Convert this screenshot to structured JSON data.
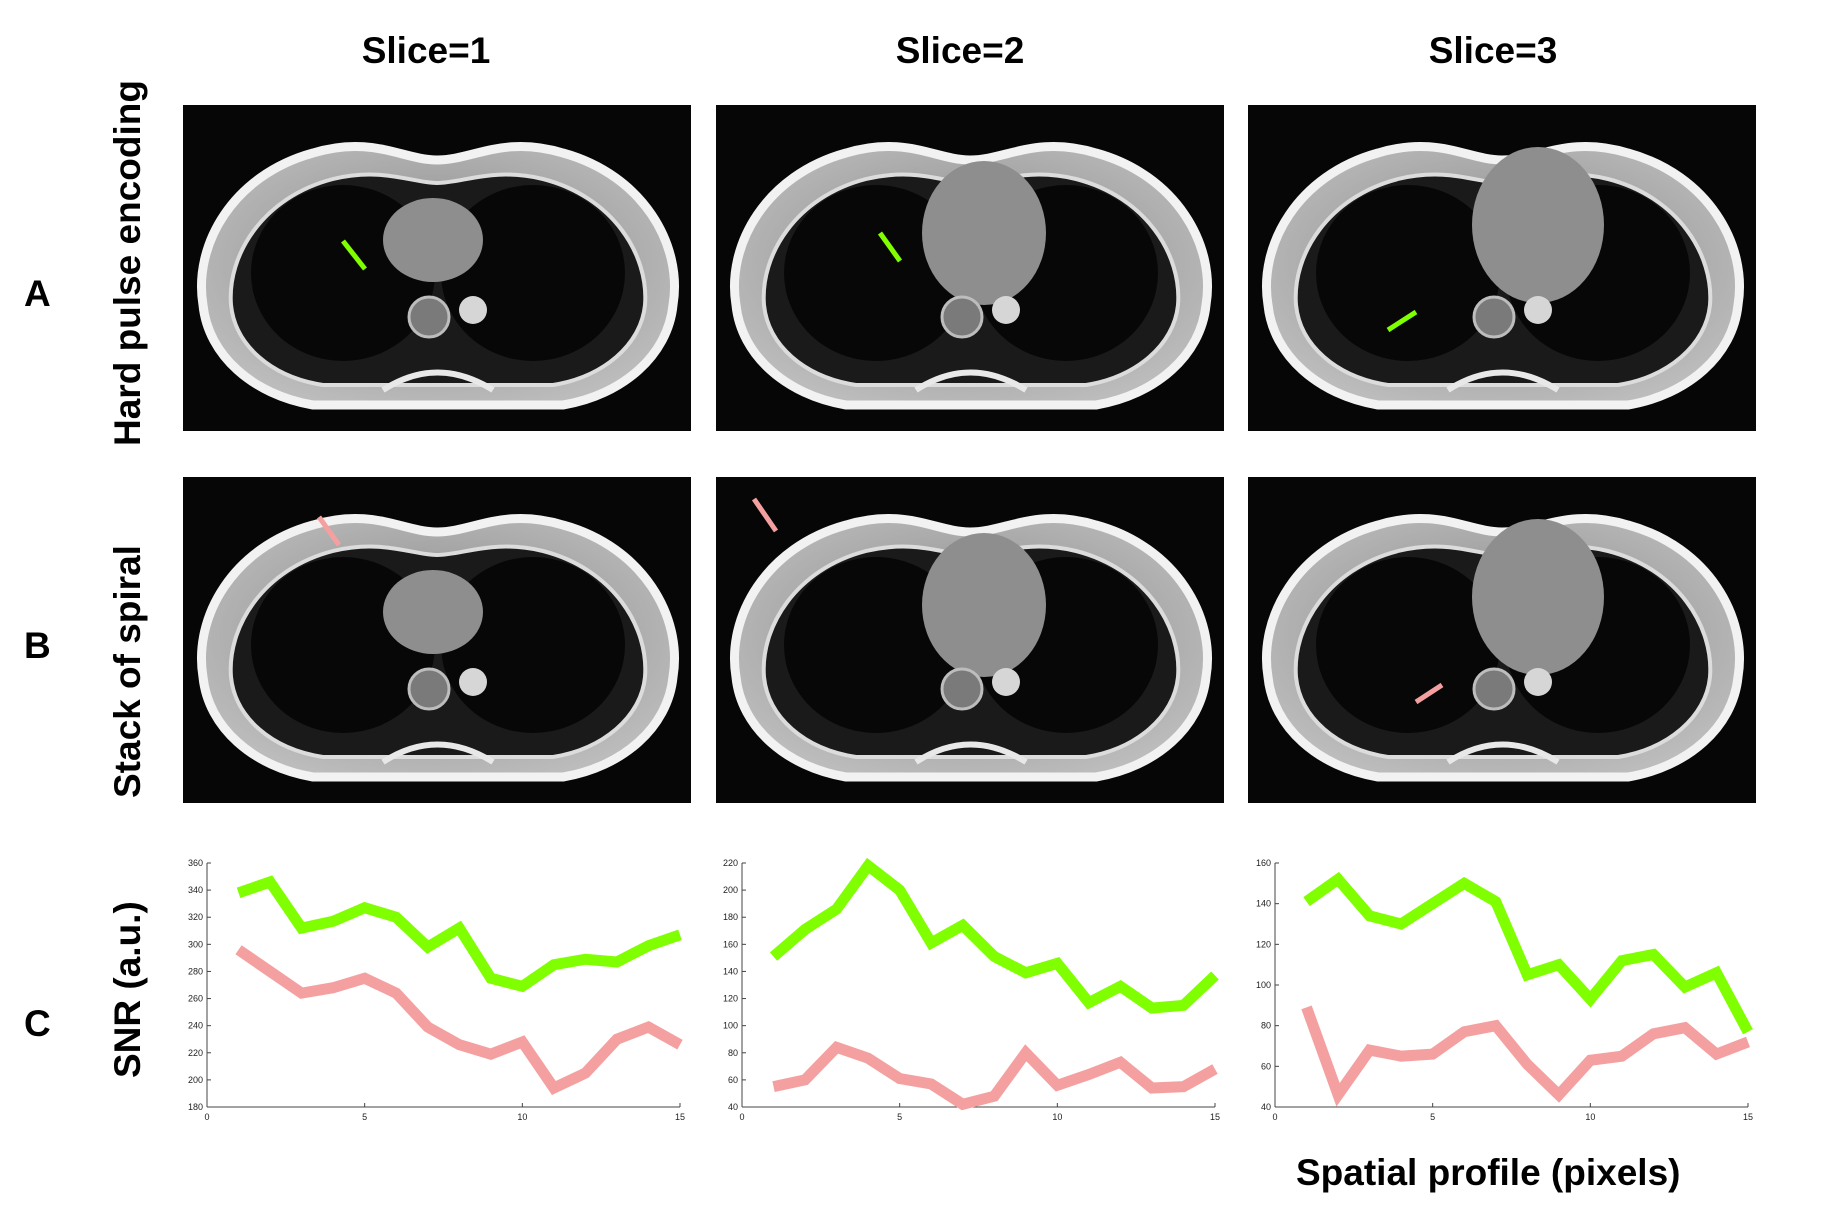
{
  "columns": [
    "Slice=1",
    "Slice=2",
    "Slice=3"
  ],
  "rows": [
    {
      "letter": "A",
      "label": "Hard pulse encoding"
    },
    {
      "letter": "B",
      "label": "Stack of spiral"
    },
    {
      "letter": "C",
      "label": "SNR (a.u.)"
    }
  ],
  "colors": {
    "hard_pulse": "#7fff00",
    "spiral": "#f4a0a0",
    "image_bg": "#060606"
  },
  "xlabel": "Spatial profile (pixels)",
  "chart_data": [
    {
      "type": "line",
      "title": "Slice=1",
      "xlabel": "",
      "ylabel": "SNR (a.u.)",
      "xlim": [
        0,
        15
      ],
      "ylim": [
        180,
        360
      ],
      "xticks": [
        0,
        5,
        10,
        15
      ],
      "yticks": [
        180,
        200,
        220,
        240,
        260,
        280,
        300,
        320,
        340,
        360
      ],
      "x": [
        1,
        2,
        3,
        4,
        5,
        6,
        7,
        8,
        9,
        10,
        11,
        12,
        13,
        14,
        15
      ],
      "series": [
        {
          "name": "Hard pulse encoding",
          "color": "#7fff00",
          "values": [
            338,
            346,
            312,
            317,
            327,
            320,
            298,
            312,
            275,
            269,
            285,
            289,
            287,
            299,
            307
          ]
        },
        {
          "name": "Stack of spiral",
          "color": "#f4a0a0",
          "values": [
            296,
            280,
            264,
            268,
            275,
            264,
            239,
            226,
            219,
            228,
            194,
            205,
            230,
            239,
            226
          ]
        }
      ]
    },
    {
      "type": "line",
      "title": "Slice=2",
      "xlabel": "",
      "ylabel": "SNR (a.u.)",
      "xlim": [
        0,
        15
      ],
      "ylim": [
        40,
        220
      ],
      "xticks": [
        0,
        5,
        10,
        15
      ],
      "yticks": [
        40,
        60,
        80,
        100,
        120,
        140,
        160,
        180,
        200,
        220
      ],
      "x": [
        1,
        2,
        3,
        4,
        5,
        6,
        7,
        8,
        9,
        10,
        11,
        12,
        13,
        14,
        15
      ],
      "series": [
        {
          "name": "Hard pulse encoding",
          "color": "#7fff00",
          "values": [
            151,
            171,
            186,
            218,
            200,
            161,
            174,
            151,
            139,
            146,
            117,
            129,
            113,
            115,
            137
          ]
        },
        {
          "name": "Stack of spiral",
          "color": "#f4a0a0",
          "values": [
            55,
            60,
            84,
            76,
            61,
            57,
            42,
            48,
            80,
            56,
            64,
            73,
            54,
            55,
            68
          ]
        }
      ]
    },
    {
      "type": "line",
      "title": "Slice=3",
      "xlabel": "Spatial profile (pixels)",
      "ylabel": "SNR (a.u.)",
      "xlim": [
        0,
        15
      ],
      "ylim": [
        40,
        160
      ],
      "xticks": [
        0,
        5,
        10,
        15
      ],
      "yticks": [
        40,
        60,
        80,
        100,
        120,
        140,
        160
      ],
      "x": [
        1,
        2,
        3,
        4,
        5,
        6,
        7,
        8,
        9,
        10,
        11,
        12,
        13,
        14,
        15
      ],
      "series": [
        {
          "name": "Hard pulse encoding",
          "color": "#7fff00",
          "values": [
            141,
            152,
            134,
            130,
            140,
            150,
            141,
            105,
            110,
            93,
            112,
            115,
            99,
            106,
            77
          ]
        },
        {
          "name": "Stack of spiral",
          "color": "#f4a0a0",
          "values": [
            89,
            46,
            68,
            65,
            66,
            77,
            80,
            61,
            46,
            63,
            65,
            76,
            79,
            66,
            72
          ]
        }
      ]
    }
  ]
}
